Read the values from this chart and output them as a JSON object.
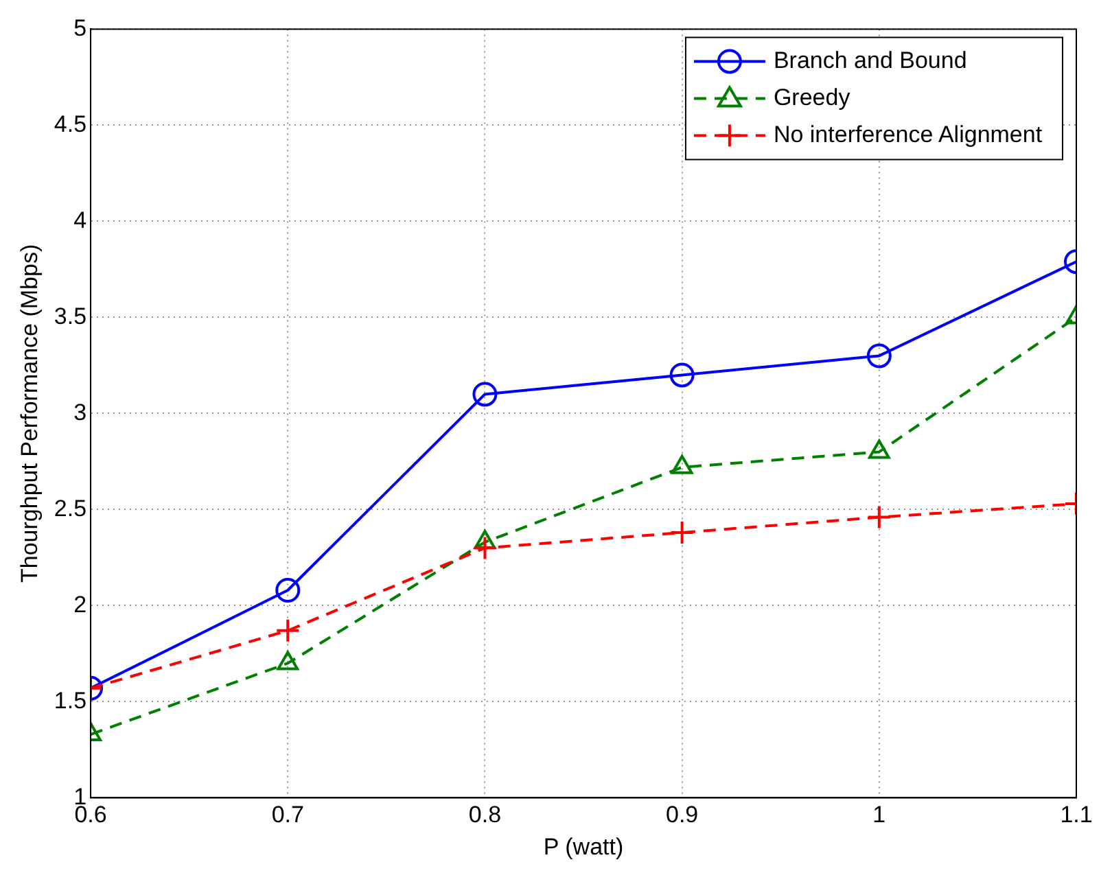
{
  "chart_data": {
    "type": "line",
    "xlabel": "P (watt)",
    "ylabel": "Thourghput Performance (Mbps)",
    "x": [
      0.6,
      0.7,
      0.8,
      0.9,
      1.0,
      1.1
    ],
    "series": [
      {
        "name": "Branch and Bound",
        "color": "#0000ff",
        "marker": "circle",
        "line_style": "solid",
        "values": [
          1.57,
          2.08,
          3.1,
          3.2,
          3.3,
          3.79
        ]
      },
      {
        "name": "Greedy",
        "color": "#008000",
        "marker": "triangle",
        "line_style": "dashed",
        "values": [
          1.33,
          1.7,
          2.33,
          2.72,
          2.8,
          3.5
        ]
      },
      {
        "name": "No interference Alignment",
        "color": "#ff0000",
        "marker": "cross",
        "line_style": "dashed",
        "values": [
          1.57,
          1.87,
          2.3,
          2.38,
          2.46,
          2.53
        ]
      }
    ],
    "xlim": [
      0.6,
      1.1
    ],
    "xticks": [
      0.6,
      0.7,
      0.8,
      0.9,
      1,
      1.1
    ],
    "ylim": [
      1,
      5
    ],
    "yticks": [
      1,
      1.5,
      2,
      2.5,
      3,
      3.5,
      4,
      4.5,
      5
    ],
    "grid": true,
    "legend": "top right"
  }
}
